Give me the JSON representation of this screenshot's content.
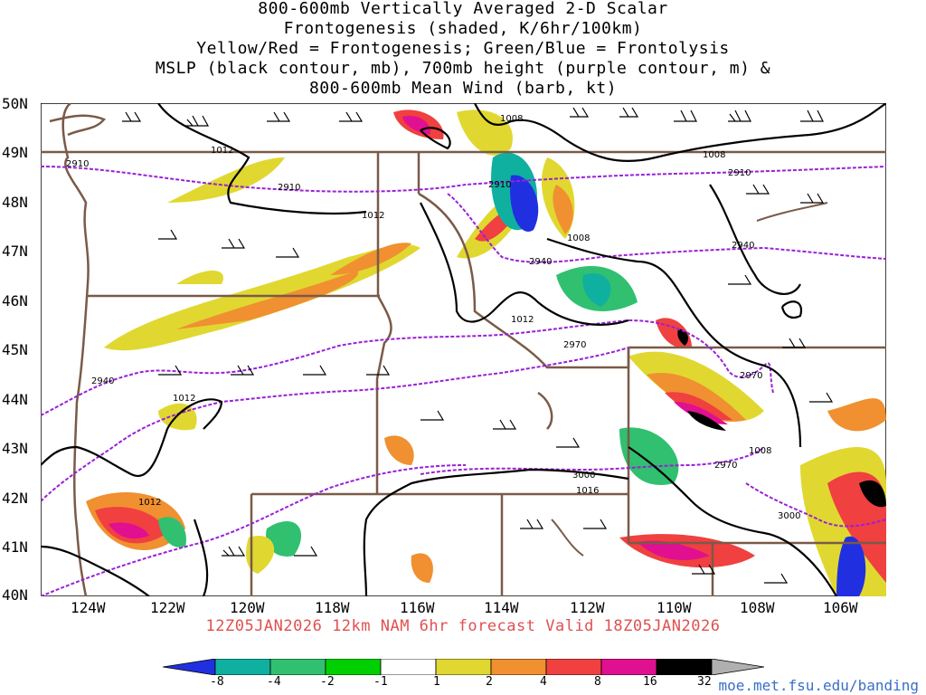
{
  "title_lines": [
    "800-600mb Vertically Averaged 2-D Scalar",
    "Frontogenesis (shaded, K/6hr/100km)",
    "Yellow/Red = Frontogenesis;  Green/Blue = Frontolysis",
    "MSLP (black contour, mb), 700mb height (purple contour, m) &",
    "800-600mb Mean Wind (barb, kt)"
  ],
  "lat_labels": [
    "50N",
    "49N",
    "48N",
    "47N",
    "46N",
    "45N",
    "44N",
    "43N",
    "42N",
    "41N",
    "40N"
  ],
  "lon_labels": [
    "124W",
    "122W",
    "120W",
    "118W",
    "116W",
    "114W",
    "112W",
    "110W",
    "108W",
    "106W"
  ],
  "footer": "12Z05JAN2026 12km NAM 6hr forecast Valid 18Z05JAN2026",
  "colorbar": {
    "labels": [
      "-8",
      "-4",
      "-2",
      "-1",
      "1",
      "2",
      "4",
      "8",
      "16",
      "32"
    ],
    "colors": [
      "#2030e0",
      "#10b0a0",
      "#30c070",
      "#00d000",
      "#ffffff",
      "#e0d830",
      "#f09030",
      "#f04040",
      "#e01090",
      "#000000",
      "#b0b0b0"
    ]
  },
  "contour_labels": {
    "mslp": [
      "1008",
      "1012",
      "1012",
      "1008",
      "1008",
      "1012",
      "1012",
      "1012",
      "1016",
      "1008"
    ],
    "height": [
      "2910",
      "2910",
      "2910",
      "2910",
      "2940",
      "2940",
      "2940",
      "2970",
      "2970",
      "2970",
      "3000",
      "3000"
    ]
  },
  "url": "moe.met.fsu.edu/banding"
}
